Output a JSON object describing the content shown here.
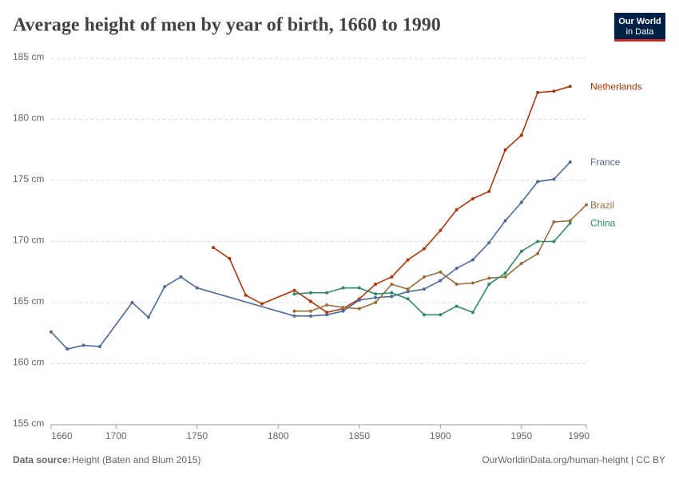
{
  "chart_data": {
    "type": "line",
    "title": "Average height of men by year of birth, 1660 to 1990",
    "logo": [
      "Our World",
      "in Data"
    ],
    "source_label": "Data source:",
    "source": "Height (Baten and Blum 2015)",
    "credit": "OurWorldinData.org/human-height | CC BY",
    "xlim": [
      1660,
      1990
    ],
    "xticks": [
      1660,
      1700,
      1750,
      1800,
      1850,
      1900,
      1950,
      1990
    ],
    "ylim": [
      155,
      185
    ],
    "yticks": [
      {
        "value": 155,
        "label": "155 cm"
      },
      {
        "value": 160,
        "label": "160 cm"
      },
      {
        "value": 165,
        "label": "165 cm"
      },
      {
        "value": 170,
        "label": "170 cm"
      },
      {
        "value": 175,
        "label": "175 cm"
      },
      {
        "value": 180,
        "label": "180 cm"
      },
      {
        "value": 185,
        "label": "185 cm"
      }
    ],
    "grid": true,
    "series": [
      {
        "name": "Netherlands",
        "color": "#b13507",
        "x": [
          1760,
          1770,
          1780,
          1790,
          1810,
          1820,
          1830,
          1840,
          1850,
          1860,
          1870,
          1880,
          1890,
          1900,
          1910,
          1920,
          1930,
          1940,
          1950,
          1960,
          1970,
          1980
        ],
        "values": [
          169.5,
          168.6,
          165.6,
          164.9,
          166.0,
          165.1,
          164.2,
          164.5,
          165.3,
          166.5,
          167.1,
          168.5,
          169.4,
          170.9,
          172.6,
          173.5,
          174.1,
          177.5,
          178.7,
          182.2,
          182.3,
          182.7
        ]
      },
      {
        "name": "France",
        "color": "#4c6a9c",
        "x": [
          1660,
          1670,
          1680,
          1690,
          1710,
          1720,
          1730,
          1740,
          1750,
          1810,
          1820,
          1830,
          1840,
          1850,
          1860,
          1870,
          1880,
          1890,
          1900,
          1910,
          1920,
          1930,
          1940,
          1950,
          1960,
          1970,
          1980
        ],
        "values": [
          162.6,
          161.2,
          161.5,
          161.4,
          165.0,
          163.8,
          166.3,
          167.1,
          166.2,
          163.9,
          163.9,
          164.0,
          164.3,
          165.2,
          165.4,
          165.5,
          165.9,
          166.1,
          166.8,
          167.8,
          168.5,
          169.9,
          171.7,
          173.2,
          174.9,
          175.1,
          176.5
        ]
      },
      {
        "name": "Brazil",
        "color": "#996d39",
        "x": [
          1810,
          1820,
          1830,
          1840,
          1850,
          1860,
          1870,
          1880,
          1890,
          1900,
          1910,
          1920,
          1930,
          1940,
          1950,
          1960,
          1970,
          1980,
          1990
        ],
        "values": [
          164.3,
          164.3,
          164.8,
          164.6,
          164.5,
          165.0,
          166.5,
          166.1,
          167.1,
          167.5,
          166.5,
          166.6,
          167.0,
          167.1,
          168.2,
          169.0,
          171.6,
          171.7,
          173.0
        ]
      },
      {
        "name": "China",
        "color": "#2f8a68",
        "x": [
          1810,
          1820,
          1830,
          1840,
          1850,
          1860,
          1870,
          1880,
          1890,
          1900,
          1910,
          1920,
          1930,
          1940,
          1950,
          1960,
          1970,
          1980
        ],
        "values": [
          165.7,
          165.8,
          165.8,
          166.2,
          166.2,
          165.7,
          165.8,
          165.3,
          164.0,
          164.0,
          164.7,
          164.2,
          166.5,
          167.4,
          169.2,
          170.0,
          170.0,
          171.5
        ]
      }
    ]
  }
}
